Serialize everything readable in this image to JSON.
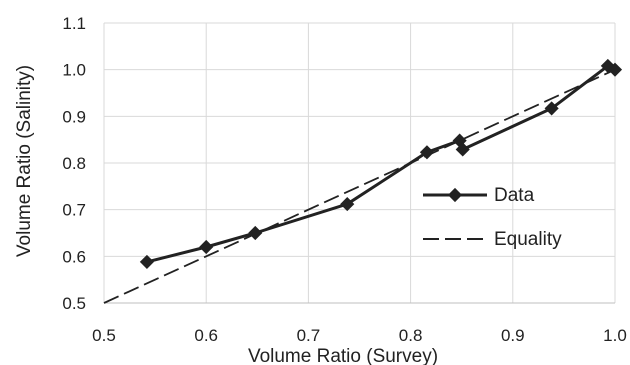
{
  "chart_data": {
    "type": "line",
    "xlabel": "Volume Ratio (Survey)",
    "ylabel": "Volume Ratio (Salinity)",
    "xlim": [
      0.5,
      1.0
    ],
    "ylim": [
      0.5,
      1.1
    ],
    "x_ticks": [
      "0.5",
      "0.6",
      "0.7",
      "0.8",
      "0.9",
      "1.0"
    ],
    "y_ticks": [
      "0.5",
      "0.6",
      "0.7",
      "0.8",
      "0.9",
      "1.0",
      "1.1"
    ],
    "x_tick_values": [
      0.5,
      0.6,
      0.7,
      0.8,
      0.9,
      1.0
    ],
    "y_tick_values": [
      0.5,
      0.6,
      0.7,
      0.8,
      0.9,
      1.0,
      1.1
    ],
    "grid": true,
    "legend_position": "right",
    "series": [
      {
        "name": "Data",
        "style": "solid-diamond",
        "color": "#222222",
        "x": [
          0.542,
          0.6,
          0.648,
          0.738,
          0.816,
          0.848,
          0.851,
          0.938,
          0.993,
          1.0
        ],
        "y": [
          0.588,
          0.62,
          0.65,
          0.712,
          0.823,
          0.848,
          0.829,
          0.917,
          1.008,
          1.0
        ]
      },
      {
        "name": "Equality",
        "style": "dashed",
        "color": "#222222",
        "x": [
          0.5,
          1.0
        ],
        "y": [
          0.5,
          1.0
        ]
      }
    ]
  }
}
